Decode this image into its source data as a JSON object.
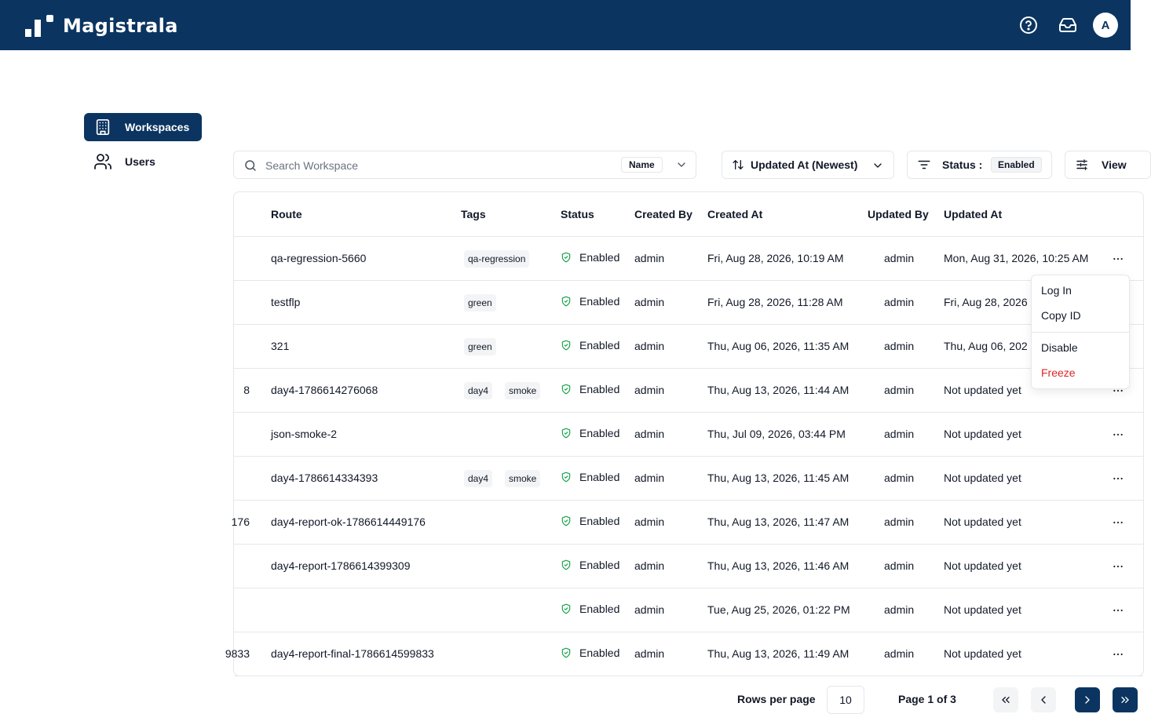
{
  "app": {
    "name": "Magistrala",
    "user_initial": "A",
    "icons": [
      "help-circle-icon",
      "inbox-icon"
    ]
  },
  "sidebar": {
    "items": [
      {
        "label": "Workspaces",
        "icon": "building-icon",
        "active": true
      },
      {
        "label": "Users",
        "icon": "users-icon",
        "active": false
      }
    ]
  },
  "toolbar": {
    "search_placeholder": "Search Workspace",
    "search_field": "Name",
    "sort_label": "Updated At (Newest)",
    "status_label": "Status :",
    "status_value": "Enabled",
    "view_label": "View"
  },
  "table": {
    "columns": [
      "Route",
      "Tags",
      "Status",
      "Created By",
      "Created At",
      "Updated By",
      "Updated At"
    ],
    "rows": [
      {
        "name_fragment": "",
        "route": "qa-regression-5660",
        "tags": [
          "qa-regression"
        ],
        "status": "Enabled",
        "created_by": "admin",
        "created_at": "Fri, Aug 28, 2026, 10:19 AM",
        "updated_by": "admin",
        "updated_at": "Mon, Aug 31, 2026, 10:25 AM"
      },
      {
        "name_fragment": "",
        "route": "testflp",
        "tags": [
          "green"
        ],
        "status": "Enabled",
        "created_by": "admin",
        "created_at": "Fri, Aug 28, 2026, 11:28 AM",
        "updated_by": "admin",
        "updated_at": "Fri, Aug 28, 2026"
      },
      {
        "name_fragment": "",
        "route": "321",
        "tags": [
          "green"
        ],
        "status": "Enabled",
        "created_by": "admin",
        "created_at": "Thu, Aug 06, 2026, 11:35 AM",
        "updated_by": "admin",
        "updated_at": "Thu, Aug 06, 202"
      },
      {
        "name_fragment": "8",
        "route": "day4-1786614276068",
        "tags": [
          "day4",
          "smoke"
        ],
        "status": "Enabled",
        "created_by": "admin",
        "created_at": "Thu, Aug 13, 2026, 11:44 AM",
        "updated_by": "admin",
        "updated_at": "Not updated yet"
      },
      {
        "name_fragment": "",
        "route": "json-smoke-2",
        "tags": [],
        "status": "Enabled",
        "created_by": "admin",
        "created_at": "Thu, Jul 09, 2026, 03:44 PM",
        "updated_by": "admin",
        "updated_at": "Not updated yet"
      },
      {
        "name_fragment": "",
        "route": "day4-1786614334393",
        "tags": [
          "day4",
          "smoke"
        ],
        "status": "Enabled",
        "created_by": "admin",
        "created_at": "Thu, Aug 13, 2026, 11:45 AM",
        "updated_by": "admin",
        "updated_at": "Not updated yet"
      },
      {
        "name_fragment": "176",
        "route": "day4-report-ok-1786614449176",
        "tags": [],
        "status": "Enabled",
        "created_by": "admin",
        "created_at": "Thu, Aug 13, 2026, 11:47 AM",
        "updated_by": "admin",
        "updated_at": "Not updated yet"
      },
      {
        "name_fragment": "",
        "route": "day4-report-1786614399309",
        "tags": [],
        "status": "Enabled",
        "created_by": "admin",
        "created_at": "Thu, Aug 13, 2026, 11:46 AM",
        "updated_by": "admin",
        "updated_at": "Not updated yet"
      },
      {
        "name_fragment": "",
        "route": "",
        "tags": [],
        "status": "Enabled",
        "created_by": "admin",
        "created_at": "Tue, Aug 25, 2026, 01:22 PM",
        "updated_by": "admin",
        "updated_at": "Not updated yet"
      },
      {
        "name_fragment": "9833",
        "route": "day4-report-final-1786614599833",
        "tags": [],
        "status": "Enabled",
        "created_by": "admin",
        "created_at": "Thu, Aug 13, 2026, 11:49 AM",
        "updated_by": "admin",
        "updated_at": "Not updated yet"
      }
    ]
  },
  "row_menu": {
    "items": [
      "Log In",
      "Copy ID",
      "Disable",
      "Freeze"
    ]
  },
  "pagination": {
    "rows_per_page_label": "Rows per page",
    "rows_per_page": "10",
    "page_info": "Page 1 of 3"
  },
  "colors": {
    "brand": "#0b3560",
    "status_enabled": "#16a34a",
    "danger": "#dc2626"
  }
}
